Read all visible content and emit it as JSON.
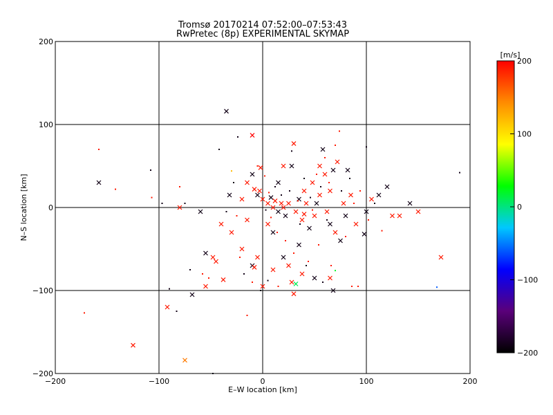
{
  "chart_data": {
    "type": "scatter",
    "title": "Tromsø 20170214 07:52:00–07:53:43",
    "subtitle": "RwPretec (8p) EXPERIMENTAL SKYMAP",
    "xlabel": "E–W location [km]",
    "ylabel": "N–S location [km]",
    "xlim": [
      -200,
      200
    ],
    "ylim": [
      -200,
      200
    ],
    "xticks": [
      -200,
      -100,
      0,
      100,
      200
    ],
    "yticks": [
      -200,
      -100,
      0,
      100,
      200
    ],
    "grid_lines": [
      -100,
      0,
      100
    ],
    "colorbar": {
      "label": "[m/s]",
      "range": [
        -200,
        200
      ],
      "ticks": [
        200,
        100,
        0,
        -100,
        -200
      ],
      "colors": [
        "#000000",
        "#5a007a",
        "#0000ff",
        "#00c8ff",
        "#00ff00",
        "#ffff00",
        "#ff8c00",
        "#ff0000"
      ]
    },
    "marker_legend": "x = large echo, dot = small echo; color = line-of-sight velocity",
    "points": [
      {
        "x": -35,
        "y": 116,
        "v": -190,
        "m": "x"
      },
      {
        "x": -10,
        "y": 87,
        "v": 200,
        "m": "x"
      },
      {
        "x": -158,
        "y": 30,
        "v": -190,
        "m": "x"
      },
      {
        "x": -125,
        "y": -166,
        "v": 190,
        "m": "x"
      },
      {
        "x": -92,
        "y": -120,
        "v": 190,
        "m": "x"
      },
      {
        "x": -75,
        "y": -184,
        "v": 150,
        "m": "x"
      },
      {
        "x": -68,
        "y": -105,
        "v": -190,
        "m": "x"
      },
      {
        "x": -55,
        "y": -95,
        "v": 190,
        "m": "x"
      },
      {
        "x": -55,
        "y": -55,
        "v": -190,
        "m": "x"
      },
      {
        "x": -48,
        "y": -60,
        "v": 190,
        "m": "x"
      },
      {
        "x": -45,
        "y": -65,
        "v": 190,
        "m": "x"
      },
      {
        "x": -38,
        "y": -87,
        "v": 190,
        "m": "x"
      },
      {
        "x": -30,
        "y": -30,
        "v": 190,
        "m": "x"
      },
      {
        "x": -32,
        "y": 15,
        "v": -190,
        "m": "x"
      },
      {
        "x": -20,
        "y": 10,
        "v": 190,
        "m": "x"
      },
      {
        "x": -15,
        "y": 30,
        "v": 190,
        "m": "x"
      },
      {
        "x": -10,
        "y": 40,
        "v": -190,
        "m": "x"
      },
      {
        "x": -8,
        "y": 22,
        "v": 190,
        "m": "x"
      },
      {
        "x": -5,
        "y": 15,
        "v": -190,
        "m": "x"
      },
      {
        "x": -3,
        "y": 20,
        "v": 190,
        "m": "x"
      },
      {
        "x": 0,
        "y": 10,
        "v": 190,
        "m": "x"
      },
      {
        "x": 5,
        "y": 5,
        "v": 190,
        "m": "x"
      },
      {
        "x": 8,
        "y": 12,
        "v": -190,
        "m": "x"
      },
      {
        "x": 10,
        "y": 0,
        "v": 190,
        "m": "x"
      },
      {
        "x": 12,
        "y": 8,
        "v": 190,
        "m": "x"
      },
      {
        "x": 15,
        "y": -5,
        "v": -190,
        "m": "x"
      },
      {
        "x": 18,
        "y": 5,
        "v": 190,
        "m": "x"
      },
      {
        "x": 20,
        "y": 0,
        "v": 190,
        "m": "x"
      },
      {
        "x": 22,
        "y": -10,
        "v": -190,
        "m": "x"
      },
      {
        "x": 25,
        "y": 5,
        "v": 190,
        "m": "x"
      },
      {
        "x": 28,
        "y": 50,
        "v": -190,
        "m": "x"
      },
      {
        "x": 30,
        "y": 77,
        "v": 190,
        "m": "x"
      },
      {
        "x": 32,
        "y": -5,
        "v": 190,
        "m": "x"
      },
      {
        "x": 35,
        "y": 10,
        "v": -190,
        "m": "x"
      },
      {
        "x": 38,
        "y": -15,
        "v": 190,
        "m": "x"
      },
      {
        "x": 40,
        "y": -8,
        "v": 190,
        "m": "x"
      },
      {
        "x": 42,
        "y": 5,
        "v": 190,
        "m": "x"
      },
      {
        "x": 45,
        "y": -25,
        "v": -190,
        "m": "x"
      },
      {
        "x": 48,
        "y": 30,
        "v": 190,
        "m": "x"
      },
      {
        "x": 50,
        "y": -10,
        "v": 190,
        "m": "x"
      },
      {
        "x": 52,
        "y": 5,
        "v": -190,
        "m": "x"
      },
      {
        "x": 55,
        "y": 15,
        "v": 190,
        "m": "x"
      },
      {
        "x": 58,
        "y": 70,
        "v": -190,
        "m": "x"
      },
      {
        "x": 60,
        "y": 40,
        "v": 190,
        "m": "x"
      },
      {
        "x": 62,
        "y": -5,
        "v": 190,
        "m": "x"
      },
      {
        "x": 65,
        "y": -20,
        "v": -190,
        "m": "x"
      },
      {
        "x": 68,
        "y": 45,
        "v": -190,
        "m": "x"
      },
      {
        "x": 70,
        "y": -30,
        "v": 190,
        "m": "x"
      },
      {
        "x": 72,
        "y": 55,
        "v": 190,
        "m": "x"
      },
      {
        "x": 75,
        "y": -40,
        "v": -190,
        "m": "x"
      },
      {
        "x": 78,
        "y": 5,
        "v": 190,
        "m": "x"
      },
      {
        "x": 80,
        "y": -10,
        "v": -190,
        "m": "x"
      },
      {
        "x": 85,
        "y": 15,
        "v": 190,
        "m": "x"
      },
      {
        "x": 90,
        "y": -20,
        "v": 190,
        "m": "x"
      },
      {
        "x": 98,
        "y": -32,
        "v": -190,
        "m": "x"
      },
      {
        "x": 100,
        "y": -5,
        "v": -190,
        "m": "x"
      },
      {
        "x": 105,
        "y": 10,
        "v": 190,
        "m": "x"
      },
      {
        "x": 112,
        "y": 15,
        "v": -190,
        "m": "x"
      },
      {
        "x": 120,
        "y": 25,
        "v": -190,
        "m": "x"
      },
      {
        "x": 125,
        "y": -10,
        "v": 190,
        "m": "x"
      },
      {
        "x": 132,
        "y": -10,
        "v": 190,
        "m": "x"
      },
      {
        "x": 142,
        "y": 5,
        "v": -190,
        "m": "x"
      },
      {
        "x": 150,
        "y": -5,
        "v": 190,
        "m": "x"
      },
      {
        "x": 172,
        "y": -60,
        "v": 190,
        "m": "x"
      },
      {
        "x": -10,
        "y": -70,
        "v": -190,
        "m": "x"
      },
      {
        "x": -8,
        "y": -72,
        "v": 190,
        "m": "x"
      },
      {
        "x": 0,
        "y": -95,
        "v": 190,
        "m": "x"
      },
      {
        "x": 10,
        "y": -75,
        "v": 190,
        "m": "x"
      },
      {
        "x": 20,
        "y": -60,
        "v": -190,
        "m": "x"
      },
      {
        "x": 25,
        "y": -70,
        "v": 190,
        "m": "x"
      },
      {
        "x": 28,
        "y": -90,
        "v": 190,
        "m": "x"
      },
      {
        "x": 30,
        "y": -104,
        "v": 190,
        "m": "x"
      },
      {
        "x": 32,
        "y": -92,
        "v": 10,
        "m": "x"
      },
      {
        "x": 38,
        "y": -80,
        "v": 190,
        "m": "x"
      },
      {
        "x": 50,
        "y": -85,
        "v": -190,
        "m": "x"
      },
      {
        "x": 65,
        "y": -85,
        "v": 190,
        "m": "x"
      },
      {
        "x": 68,
        "y": -100,
        "v": -190,
        "m": "x"
      },
      {
        "x": 15,
        "y": 30,
        "v": -190,
        "m": "x"
      },
      {
        "x": 20,
        "y": 50,
        "v": 190,
        "m": "x"
      },
      {
        "x": 40,
        "y": 20,
        "v": 190,
        "m": "x"
      },
      {
        "x": 55,
        "y": 50,
        "v": 190,
        "m": "x"
      },
      {
        "x": 65,
        "y": 20,
        "v": 190,
        "m": "x"
      },
      {
        "x": 10,
        "y": -30,
        "v": -190,
        "m": "x"
      },
      {
        "x": 35,
        "y": -45,
        "v": -190,
        "m": "x"
      },
      {
        "x": 5,
        "y": -20,
        "v": 190,
        "m": "x"
      },
      {
        "x": -15,
        "y": -15,
        "v": 190,
        "m": "x"
      },
      {
        "x": -5,
        "y": -60,
        "v": 190,
        "m": "x"
      },
      {
        "x": -20,
        "y": -50,
        "v": 190,
        "m": "x"
      },
      {
        "x": -60,
        "y": -5,
        "v": -190,
        "m": "x"
      },
      {
        "x": -80,
        "y": 0,
        "v": 190,
        "m": "x"
      },
      {
        "x": -40,
        "y": -20,
        "v": 190,
        "m": "x"
      },
      {
        "x": -2,
        "y": 48,
        "v": 190,
        "m": "x"
      },
      {
        "x": 82,
        "y": 45,
        "v": -190,
        "m": "x"
      },
      {
        "x": -172,
        "y": -127,
        "v": 190,
        "m": "d"
      },
      {
        "x": -158,
        "y": 70,
        "v": 190,
        "m": "d"
      },
      {
        "x": -142,
        "y": 22,
        "v": 190,
        "m": "d"
      },
      {
        "x": -108,
        "y": 45,
        "v": -190,
        "m": "d"
      },
      {
        "x": -107,
        "y": 12,
        "v": 190,
        "m": "d"
      },
      {
        "x": -97,
        "y": 5,
        "v": -190,
        "m": "d"
      },
      {
        "x": -90,
        "y": -98,
        "v": -190,
        "m": "d"
      },
      {
        "x": -83,
        "y": -125,
        "v": -190,
        "m": "d"
      },
      {
        "x": -80,
        "y": 25,
        "v": 190,
        "m": "d"
      },
      {
        "x": -75,
        "y": 5,
        "v": -190,
        "m": "d"
      },
      {
        "x": -70,
        "y": -75,
        "v": -190,
        "m": "d"
      },
      {
        "x": -58,
        "y": -80,
        "v": 190,
        "m": "d"
      },
      {
        "x": -52,
        "y": -85,
        "v": 190,
        "m": "d"
      },
      {
        "x": -48,
        "y": -200,
        "v": -190,
        "m": "d"
      },
      {
        "x": -42,
        "y": 70,
        "v": -190,
        "m": "d"
      },
      {
        "x": -35,
        "y": -5,
        "v": -190,
        "m": "d"
      },
      {
        "x": -30,
        "y": 44,
        "v": 120,
        "m": "d"
      },
      {
        "x": -28,
        "y": 30,
        "v": -190,
        "m": "d"
      },
      {
        "x": -25,
        "y": -10,
        "v": 190,
        "m": "d"
      },
      {
        "x": -22,
        "y": -60,
        "v": 190,
        "m": "d"
      },
      {
        "x": -18,
        "y": -80,
        "v": -190,
        "m": "d"
      },
      {
        "x": -15,
        "y": -130,
        "v": 190,
        "m": "d"
      },
      {
        "x": -10,
        "y": -90,
        "v": 190,
        "m": "d"
      },
      {
        "x": -24,
        "y": 85,
        "v": -190,
        "m": "d"
      },
      {
        "x": -5,
        "y": 50,
        "v": 190,
        "m": "d"
      },
      {
        "x": 2,
        "y": 38,
        "v": 190,
        "m": "d"
      },
      {
        "x": 3,
        "y": -3,
        "v": -190,
        "m": "d"
      },
      {
        "x": 6,
        "y": 18,
        "v": 190,
        "m": "d"
      },
      {
        "x": 8,
        "y": -12,
        "v": 190,
        "m": "d"
      },
      {
        "x": 12,
        "y": 25,
        "v": -190,
        "m": "d"
      },
      {
        "x": 14,
        "y": -30,
        "v": 190,
        "m": "d"
      },
      {
        "x": 18,
        "y": 15,
        "v": -190,
        "m": "d"
      },
      {
        "x": 22,
        "y": -40,
        "v": 190,
        "m": "d"
      },
      {
        "x": 26,
        "y": 20,
        "v": -190,
        "m": "d"
      },
      {
        "x": 28,
        "y": 68,
        "v": -190,
        "m": "d"
      },
      {
        "x": 30,
        "y": -55,
        "v": 190,
        "m": "d"
      },
      {
        "x": 34,
        "y": 8,
        "v": 190,
        "m": "d"
      },
      {
        "x": 36,
        "y": -20,
        "v": -190,
        "m": "d"
      },
      {
        "x": 40,
        "y": 35,
        "v": -190,
        "m": "d"
      },
      {
        "x": 44,
        "y": -65,
        "v": 190,
        "m": "d"
      },
      {
        "x": 46,
        "y": 12,
        "v": -190,
        "m": "d"
      },
      {
        "x": 48,
        "y": -3,
        "v": 190,
        "m": "d"
      },
      {
        "x": 52,
        "y": 40,
        "v": 190,
        "m": "d"
      },
      {
        "x": 54,
        "y": -45,
        "v": 190,
        "m": "d"
      },
      {
        "x": 56,
        "y": 25,
        "v": -190,
        "m": "d"
      },
      {
        "x": 60,
        "y": 60,
        "v": 190,
        "m": "d"
      },
      {
        "x": 62,
        "y": -15,
        "v": -190,
        "m": "d"
      },
      {
        "x": 64,
        "y": 30,
        "v": 190,
        "m": "d"
      },
      {
        "x": 66,
        "y": -70,
        "v": 190,
        "m": "d"
      },
      {
        "x": 70,
        "y": 75,
        "v": 190,
        "m": "d"
      },
      {
        "x": 70,
        "y": -76,
        "v": 20,
        "m": "d"
      },
      {
        "x": 74,
        "y": 92,
        "v": 190,
        "m": "d"
      },
      {
        "x": 76,
        "y": 20,
        "v": -190,
        "m": "d"
      },
      {
        "x": 80,
        "y": -35,
        "v": 190,
        "m": "d"
      },
      {
        "x": 84,
        "y": 35,
        "v": -190,
        "m": "d"
      },
      {
        "x": 86,
        "y": -95,
        "v": 190,
        "m": "d"
      },
      {
        "x": 88,
        "y": 5,
        "v": 190,
        "m": "d"
      },
      {
        "x": 92,
        "y": -95,
        "v": 190,
        "m": "d"
      },
      {
        "x": 94,
        "y": 20,
        "v": 190,
        "m": "d"
      },
      {
        "x": 100,
        "y": 73,
        "v": -190,
        "m": "d"
      },
      {
        "x": 102,
        "y": -15,
        "v": 190,
        "m": "d"
      },
      {
        "x": 108,
        "y": 5,
        "v": -190,
        "m": "d"
      },
      {
        "x": 115,
        "y": -28,
        "v": 190,
        "m": "d"
      },
      {
        "x": 168,
        "y": -96,
        "v": -60,
        "m": "d"
      },
      {
        "x": 190,
        "y": 42,
        "v": -190,
        "m": "d"
      },
      {
        "x": -2,
        "y": -100,
        "v": -190,
        "m": "d"
      },
      {
        "x": 5,
        "y": -88,
        "v": -190,
        "m": "d"
      },
      {
        "x": 15,
        "y": -95,
        "v": 190,
        "m": "d"
      },
      {
        "x": 42,
        "y": -70,
        "v": -190,
        "m": "d"
      },
      {
        "x": 58,
        "y": -90,
        "v": -190,
        "m": "d"
      }
    ]
  }
}
